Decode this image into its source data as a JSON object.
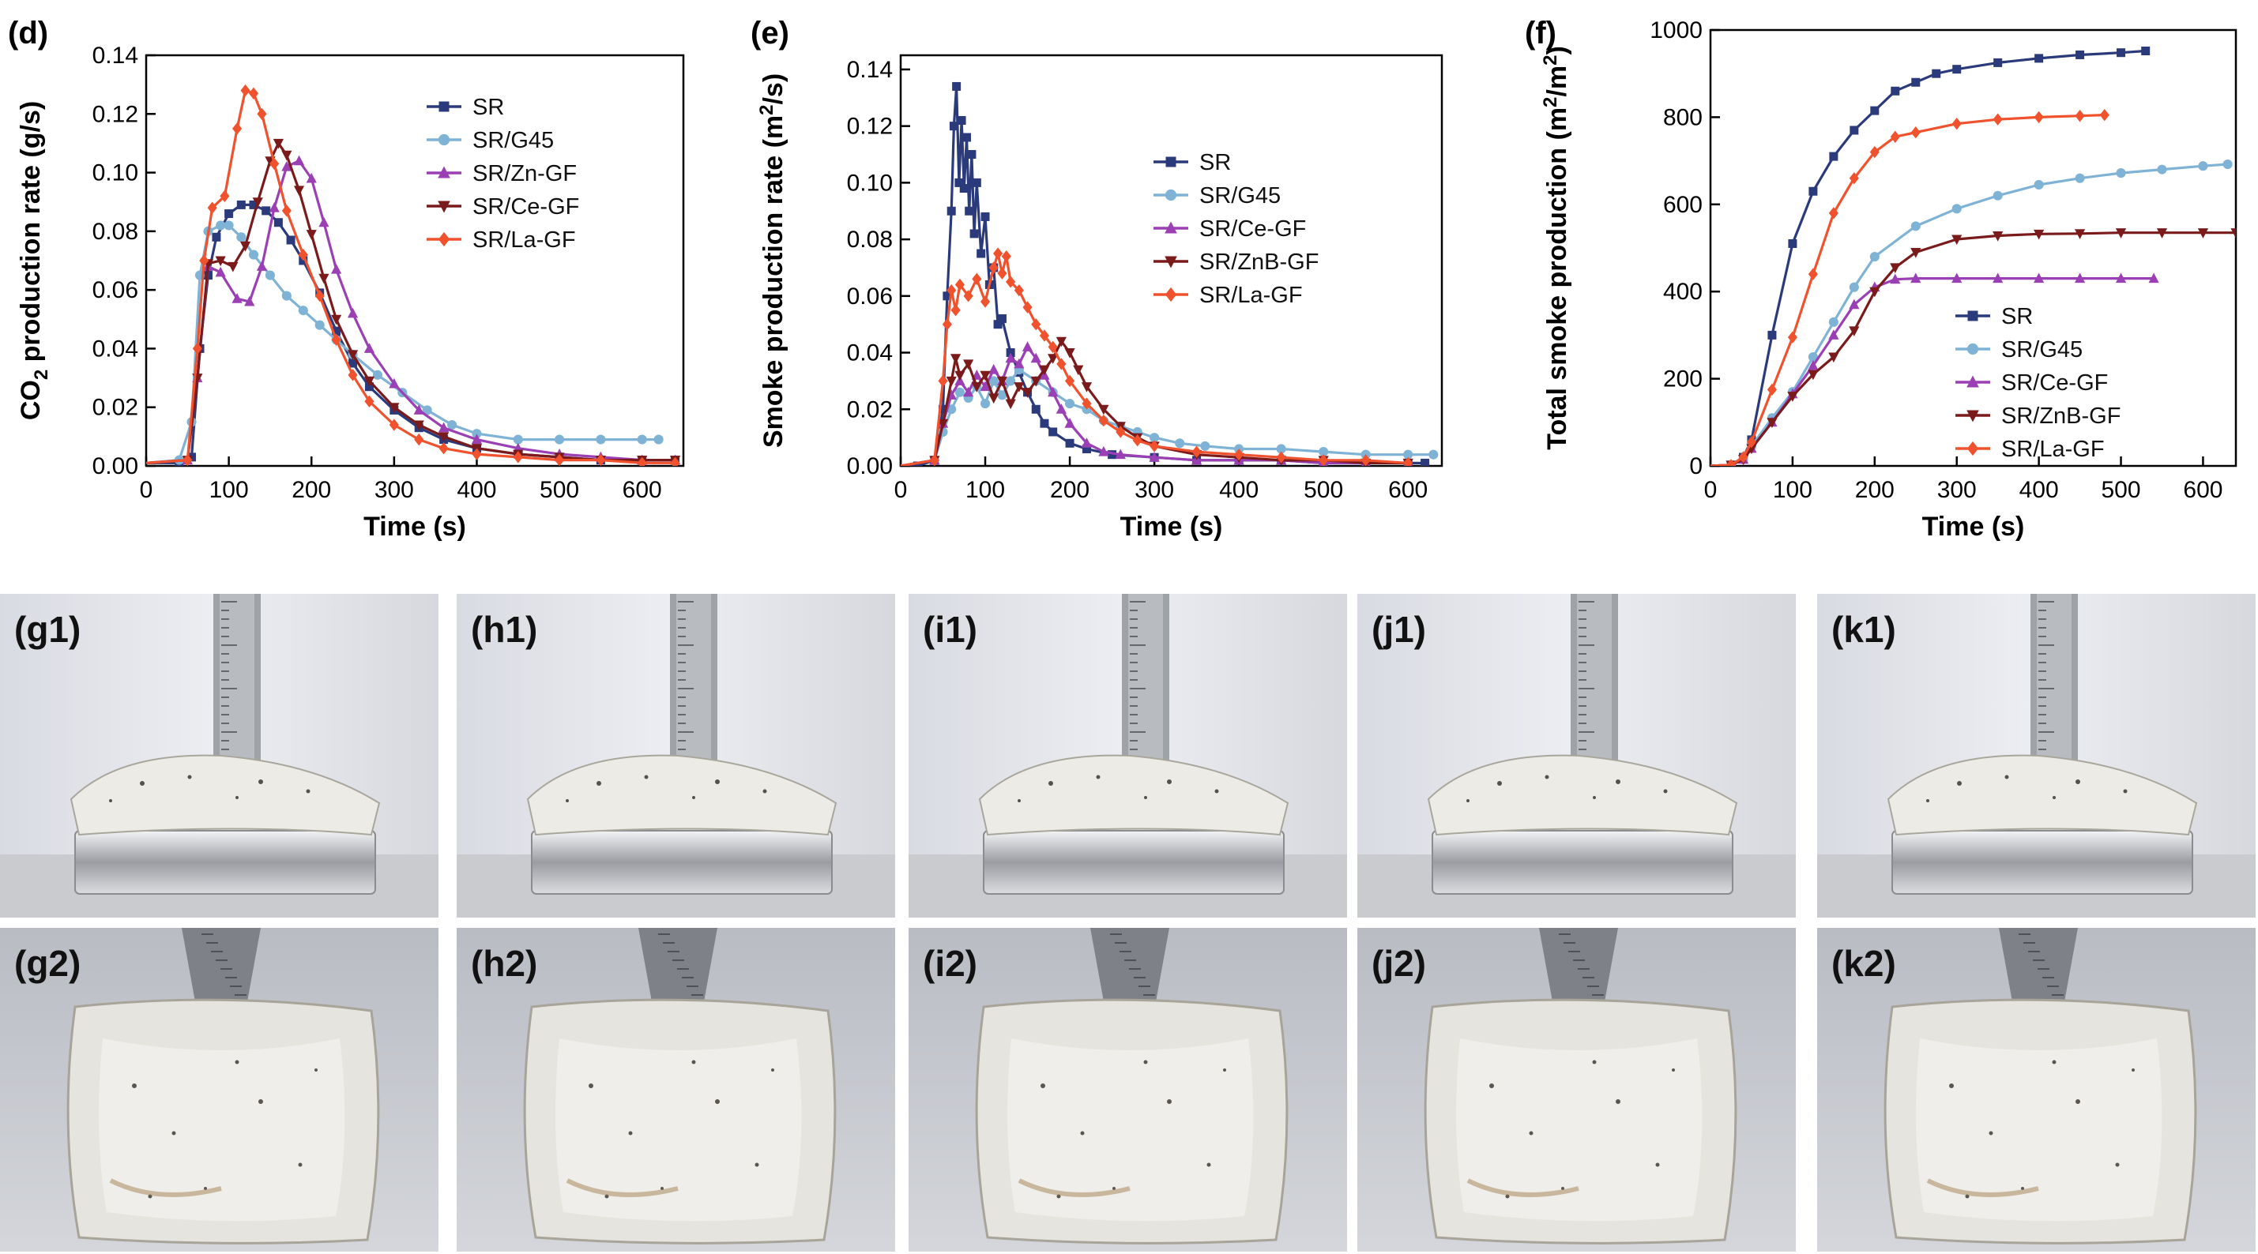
{
  "panel_labels": {
    "d": "(d)",
    "e": "(e)",
    "f": "(f)"
  },
  "photo_labels": {
    "g1": "(g1)",
    "h1": "(h1)",
    "i1": "(i1)",
    "j1": "(j1)",
    "k1": "(k1)",
    "g2": "(g2)",
    "h2": "(h2)",
    "i2": "(i2)",
    "j2": "(j2)",
    "k2": "(k2)"
  },
  "colors": {
    "SR": "#2b3a7a",
    "SR/G45": "#7fb3d5",
    "SR/Zn-GF": "#9b3fb5",
    "SR/Ce-GF": "#7a1a1a",
    "SR/La-GF": "#f0522d",
    "SR/Ce-GF (e,f)": "#9b3fb5",
    "SR/ZnB-GF": "#7a1a1a"
  },
  "chart_data": [
    {
      "type": "line",
      "xlabel": "Time (s)",
      "ylabel_main": "CO",
      "ylabel_sub": "2",
      "ylabel_rest": " production rate (g/s)",
      "xlim": [
        0,
        650
      ],
      "ylim": [
        0,
        0.14
      ],
      "xticks": [
        "0",
        "100",
        "200",
        "300",
        "400",
        "500",
        "600"
      ],
      "yticks": [
        "0.00",
        "0.02",
        "0.04",
        "0.06",
        "0.08",
        "0.10",
        "0.12",
        "0.14"
      ],
      "xtick_values": [
        0,
        100,
        200,
        300,
        400,
        500,
        600
      ],
      "ytick_values": [
        0,
        0.02,
        0.04,
        0.06,
        0.08,
        0.1,
        0.12,
        0.14
      ],
      "legend": "upper-right",
      "series": [
        {
          "name": "SR",
          "color": "#2b3a7a",
          "marker": "square",
          "x": [
            0,
            40,
            55,
            65,
            75,
            85,
            100,
            115,
            130,
            145,
            160,
            175,
            190,
            210,
            230,
            250,
            270,
            300,
            330,
            360,
            400,
            450,
            500,
            550,
            600,
            640
          ],
          "y": [
            0.001,
            0.001,
            0.003,
            0.04,
            0.065,
            0.078,
            0.086,
            0.089,
            0.089,
            0.087,
            0.083,
            0.077,
            0.07,
            0.059,
            0.046,
            0.035,
            0.027,
            0.019,
            0.013,
            0.009,
            0.006,
            0.004,
            0.003,
            0.002,
            0.002,
            0.002
          ]
        },
        {
          "name": "SR/G45",
          "color": "#7fb3d5",
          "marker": "circle",
          "x": [
            0,
            40,
            55,
            65,
            75,
            90,
            100,
            115,
            130,
            150,
            170,
            190,
            210,
            230,
            250,
            280,
            310,
            340,
            370,
            400,
            450,
            500,
            550,
            600,
            620
          ],
          "y": [
            0.001,
            0.002,
            0.015,
            0.065,
            0.08,
            0.082,
            0.082,
            0.078,
            0.072,
            0.065,
            0.058,
            0.053,
            0.048,
            0.043,
            0.038,
            0.031,
            0.025,
            0.019,
            0.014,
            0.011,
            0.009,
            0.009,
            0.009,
            0.009,
            0.009
          ]
        },
        {
          "name": "SR/Zn-GF",
          "color": "#9b3fb5",
          "marker": "triangle",
          "x": [
            0,
            50,
            62,
            75,
            90,
            110,
            125,
            140,
            155,
            170,
            185,
            200,
            215,
            230,
            250,
            270,
            300,
            330,
            360,
            400,
            450,
            500,
            550,
            600,
            640
          ],
          "y": [
            0.001,
            0.002,
            0.03,
            0.068,
            0.066,
            0.057,
            0.056,
            0.068,
            0.088,
            0.102,
            0.104,
            0.098,
            0.083,
            0.067,
            0.052,
            0.04,
            0.028,
            0.019,
            0.013,
            0.009,
            0.006,
            0.004,
            0.003,
            0.002,
            0.002
          ]
        },
        {
          "name": "SR/Ce-GF",
          "color": "#7a1a1a",
          "marker": "triangle-down",
          "x": [
            0,
            50,
            62,
            75,
            90,
            105,
            120,
            135,
            150,
            160,
            170,
            185,
            200,
            215,
            230,
            250,
            270,
            300,
            330,
            360,
            400,
            450,
            500,
            550,
            600,
            640
          ],
          "y": [
            0.001,
            0.002,
            0.03,
            0.069,
            0.07,
            0.068,
            0.075,
            0.09,
            0.104,
            0.11,
            0.106,
            0.094,
            0.079,
            0.064,
            0.05,
            0.038,
            0.029,
            0.02,
            0.014,
            0.01,
            0.006,
            0.004,
            0.003,
            0.002,
            0.002,
            0.002
          ]
        },
        {
          "name": "SR/La-GF",
          "color": "#f0522d",
          "marker": "diamond",
          "x": [
            0,
            50,
            62,
            70,
            80,
            95,
            110,
            120,
            130,
            140,
            155,
            170,
            190,
            210,
            230,
            250,
            270,
            300,
            330,
            360,
            400,
            450,
            500,
            550,
            600,
            640
          ],
          "y": [
            0.001,
            0.002,
            0.04,
            0.07,
            0.088,
            0.092,
            0.115,
            0.128,
            0.127,
            0.12,
            0.103,
            0.087,
            0.072,
            0.058,
            0.043,
            0.031,
            0.022,
            0.014,
            0.009,
            0.006,
            0.004,
            0.003,
            0.002,
            0.002,
            0.001,
            0.001
          ]
        }
      ]
    },
    {
      "type": "line",
      "xlabel": "Time (s)",
      "ylabel_main": "Smoke production rate (m",
      "ylabel_sub": "2",
      "ylabel_rest": "/s)",
      "xlim": [
        0,
        640
      ],
      "ylim": [
        0,
        0.145
      ],
      "xticks": [
        "0",
        "100",
        "200",
        "300",
        "400",
        "500",
        "600"
      ],
      "yticks": [
        "0.00",
        "0.02",
        "0.04",
        "0.06",
        "0.08",
        "0.10",
        "0.12",
        "0.14"
      ],
      "xtick_values": [
        0,
        100,
        200,
        300,
        400,
        500,
        600
      ],
      "ytick_values": [
        0,
        0.02,
        0.04,
        0.06,
        0.08,
        0.1,
        0.12,
        0.14
      ],
      "legend": "center-right",
      "series": [
        {
          "name": "SR",
          "color": "#2b3a7a",
          "marker": "square",
          "x": [
            0,
            20,
            40,
            50,
            55,
            60,
            63,
            66,
            69,
            72,
            75,
            78,
            81,
            84,
            87,
            90,
            95,
            100,
            105,
            110,
            115,
            120,
            130,
            140,
            150,
            160,
            170,
            180,
            200,
            220,
            250,
            300,
            350,
            400,
            450,
            500,
            550,
            600,
            620
          ],
          "y": [
            0.0,
            0.0,
            0.002,
            0.02,
            0.06,
            0.09,
            0.12,
            0.134,
            0.1,
            0.122,
            0.098,
            0.116,
            0.09,
            0.11,
            0.082,
            0.1,
            0.075,
            0.088,
            0.064,
            0.07,
            0.05,
            0.052,
            0.04,
            0.033,
            0.026,
            0.02,
            0.015,
            0.012,
            0.008,
            0.006,
            0.004,
            0.003,
            0.002,
            0.002,
            0.002,
            0.001,
            0.001,
            0.001,
            0.001
          ]
        },
        {
          "name": "SR/G45",
          "color": "#7fb3d5",
          "marker": "circle",
          "x": [
            0,
            40,
            50,
            60,
            70,
            80,
            90,
            100,
            110,
            120,
            130,
            140,
            160,
            180,
            200,
            220,
            240,
            260,
            280,
            300,
            330,
            360,
            400,
            450,
            500,
            550,
            600,
            630
          ],
          "y": [
            0.0,
            0.002,
            0.012,
            0.02,
            0.026,
            0.024,
            0.028,
            0.022,
            0.03,
            0.025,
            0.03,
            0.034,
            0.03,
            0.026,
            0.022,
            0.02,
            0.016,
            0.014,
            0.012,
            0.01,
            0.008,
            0.007,
            0.006,
            0.006,
            0.005,
            0.004,
            0.004,
            0.004
          ]
        },
        {
          "name": "SR/Ce-GF",
          "color": "#9b3fb5",
          "marker": "triangle",
          "x": [
            0,
            40,
            50,
            60,
            70,
            80,
            90,
            100,
            110,
            120,
            130,
            140,
            150,
            160,
            170,
            180,
            190,
            200,
            220,
            240,
            260,
            300,
            350,
            400,
            450,
            500,
            550,
            600
          ],
          "y": [
            0.0,
            0.002,
            0.015,
            0.025,
            0.03,
            0.026,
            0.032,
            0.028,
            0.034,
            0.03,
            0.038,
            0.036,
            0.042,
            0.038,
            0.032,
            0.026,
            0.02,
            0.015,
            0.008,
            0.005,
            0.004,
            0.003,
            0.002,
            0.002,
            0.002,
            0.001,
            0.001,
            0.001
          ]
        },
        {
          "name": "SR/ZnB-GF",
          "color": "#7a1a1a",
          "marker": "triangle-down",
          "x": [
            0,
            40,
            50,
            60,
            65,
            70,
            80,
            90,
            100,
            110,
            120,
            130,
            140,
            150,
            160,
            170,
            180,
            190,
            200,
            210,
            220,
            240,
            260,
            280,
            300,
            350,
            400,
            450,
            500,
            550,
            600
          ],
          "y": [
            0.0,
            0.002,
            0.015,
            0.03,
            0.038,
            0.032,
            0.036,
            0.028,
            0.032,
            0.024,
            0.03,
            0.022,
            0.028,
            0.026,
            0.03,
            0.034,
            0.038,
            0.044,
            0.04,
            0.034,
            0.028,
            0.02,
            0.014,
            0.01,
            0.007,
            0.004,
            0.003,
            0.002,
            0.002,
            0.001,
            0.001
          ]
        },
        {
          "name": "SR/La-GF",
          "color": "#f0522d",
          "marker": "diamond",
          "x": [
            0,
            40,
            50,
            55,
            60,
            65,
            70,
            80,
            90,
            100,
            110,
            115,
            120,
            125,
            130,
            140,
            150,
            160,
            170,
            180,
            190,
            200,
            220,
            240,
            260,
            280,
            300,
            350,
            400,
            450,
            500,
            550,
            600
          ],
          "y": [
            0.0,
            0.002,
            0.03,
            0.05,
            0.062,
            0.055,
            0.064,
            0.06,
            0.066,
            0.058,
            0.07,
            0.075,
            0.068,
            0.074,
            0.065,
            0.062,
            0.056,
            0.05,
            0.046,
            0.042,
            0.036,
            0.03,
            0.022,
            0.016,
            0.012,
            0.009,
            0.007,
            0.005,
            0.004,
            0.003,
            0.002,
            0.002,
            0.001
          ]
        }
      ]
    },
    {
      "type": "line",
      "xlabel": "Time (s)",
      "ylabel_main": "Total smoke production (m",
      "ylabel_sub": "2",
      "ylabel_rest": "/m",
      "ylabel_sub2": "2",
      "ylabel_end": ")",
      "xlim": [
        0,
        640
      ],
      "ylim": [
        0,
        1000
      ],
      "xticks": [
        "0",
        "100",
        "200",
        "300",
        "400",
        "500",
        "600"
      ],
      "yticks": [
        "0",
        "200",
        "400",
        "600",
        "800",
        "1000"
      ],
      "xtick_values": [
        0,
        100,
        200,
        300,
        400,
        500,
        600
      ],
      "ytick_values": [
        0,
        200,
        400,
        600,
        800,
        1000
      ],
      "legend": "lower-right",
      "series": [
        {
          "name": "SR",
          "color": "#2b3a7a",
          "marker": "square",
          "x": [
            0,
            25,
            40,
            50,
            75,
            100,
            125,
            150,
            175,
            200,
            225,
            250,
            275,
            300,
            350,
            400,
            450,
            500,
            530
          ],
          "y": [
            0,
            2,
            20,
            60,
            300,
            510,
            630,
            710,
            770,
            815,
            860,
            880,
            900,
            910,
            925,
            935,
            943,
            948,
            952
          ]
        },
        {
          "name": "SR/G45",
          "color": "#7fb3d5",
          "marker": "circle",
          "x": [
            0,
            25,
            40,
            50,
            75,
            100,
            125,
            150,
            175,
            200,
            250,
            300,
            350,
            400,
            450,
            500,
            550,
            600,
            630
          ],
          "y": [
            0,
            2,
            15,
            45,
            110,
            170,
            250,
            330,
            410,
            480,
            550,
            590,
            620,
            645,
            660,
            672,
            680,
            688,
            692
          ]
        },
        {
          "name": "SR/Ce-GF",
          "color": "#9b3fb5",
          "marker": "triangle",
          "x": [
            0,
            25,
            40,
            50,
            75,
            100,
            125,
            150,
            175,
            200,
            225,
            250,
            300,
            350,
            400,
            450,
            500,
            540
          ],
          "y": [
            0,
            2,
            15,
            40,
            100,
            165,
            230,
            300,
            370,
            410,
            428,
            430,
            430,
            430,
            430,
            430,
            430,
            430
          ]
        },
        {
          "name": "SR/ZnB-GF",
          "color": "#7a1a1a",
          "marker": "triangle-down",
          "x": [
            0,
            25,
            40,
            50,
            75,
            100,
            125,
            150,
            175,
            200,
            225,
            250,
            300,
            350,
            400,
            450,
            500,
            550,
            600,
            640
          ],
          "y": [
            0,
            2,
            15,
            40,
            100,
            160,
            210,
            250,
            310,
            400,
            455,
            490,
            520,
            528,
            532,
            533,
            535,
            535,
            535,
            535
          ]
        },
        {
          "name": "SR/La-GF",
          "color": "#f0522d",
          "marker": "diamond",
          "x": [
            0,
            25,
            40,
            50,
            75,
            100,
            125,
            150,
            175,
            200,
            225,
            250,
            300,
            350,
            400,
            450,
            480
          ],
          "y": [
            0,
            2,
            20,
            55,
            175,
            295,
            440,
            580,
            660,
            720,
            755,
            765,
            785,
            795,
            800,
            803,
            805
          ]
        }
      ]
    }
  ]
}
